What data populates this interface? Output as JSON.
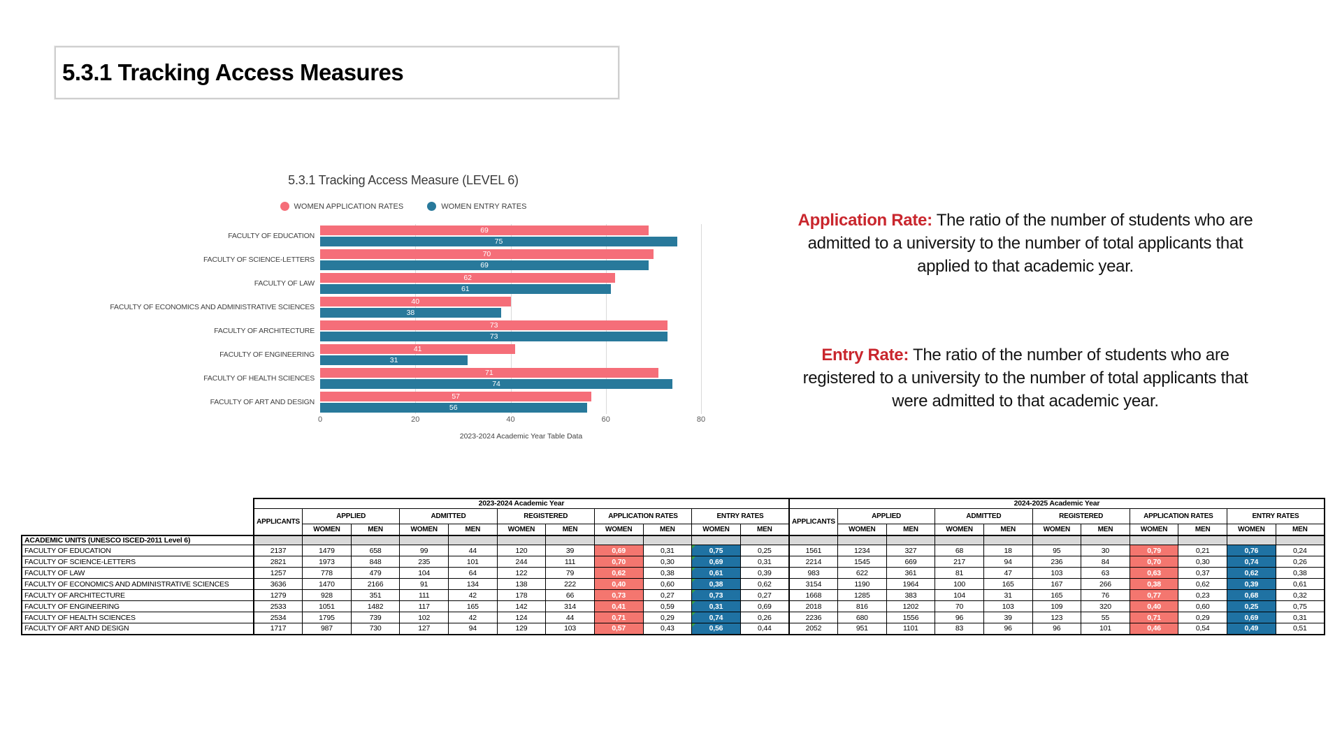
{
  "page": {
    "title": "5.3.1 Tracking Access Measures"
  },
  "colors": {
    "application_bar": "#F56E79",
    "entry_bar": "#28799B",
    "application_cell": "#F4766F",
    "entry_cell": "#1F72A3",
    "accent_red": "#C9262D",
    "grid": "#D9D9D9"
  },
  "chart_data": {
    "type": "bar",
    "orientation": "horizontal",
    "title": "5.3.1 Tracking Access Measure (LEVEL 6)",
    "xlabel": "2023-2024 Academic Year Table Data",
    "xlim": [
      0,
      80
    ],
    "xticks": [
      0,
      20,
      40,
      60,
      80
    ],
    "grid": "vertical",
    "legend_position": "top",
    "categories": [
      "FACULTY OF EDUCATION",
      "FACULTY OF SCIENCE-LETTERS",
      "FACULTY OF LAW",
      "FACULTY OF ECONOMICS AND ADMINISTRATIVE SCIENCES",
      "FACULTY OF ARCHITECTURE",
      "FACULTY OF ENGINEERING",
      "FACULTY OF HEALTH SCIENCES",
      "FACULTY OF ART AND DESIGN"
    ],
    "series": [
      {
        "name": "WOMEN APPLICATION RATES",
        "color": "#F56E79",
        "values": [
          69,
          70,
          62,
          40,
          73,
          41,
          71,
          57
        ]
      },
      {
        "name": "WOMEN ENTRY RATES",
        "color": "#28799B",
        "values": [
          75,
          69,
          61,
          38,
          73,
          31,
          74,
          56
        ]
      }
    ]
  },
  "definitions": [
    {
      "term": "Application Rate:",
      "text": " The ratio of the number of students who are admitted to a university to the number of total applicants that applied to that academic year."
    },
    {
      "term": "Entry Rate:",
      "text": " The ratio of the number of students who are registered to a university to the number of total applicants that were admitted to that academic year."
    }
  ],
  "table": {
    "year_sections": [
      "2023-2024 Academic Year",
      "2024-2025 Academic Year"
    ],
    "applicants_header": "APPLICANTS",
    "col_groups": [
      "APPLIED",
      "ADMITTED",
      "REGISTERED",
      "APPLICATION RATES",
      "ENTRY RATES"
    ],
    "sub_headers": [
      "WOMEN",
      "MEN"
    ],
    "units_header": "ACADEMIC UNITS (UNESCO ISCED-2011 Level 6)",
    "rows": [
      {
        "unit": "FACULTY OF EDUCATION",
        "y2023": [
          "2137",
          "1479",
          "658",
          "99",
          "44",
          "120",
          "39",
          "0,69",
          "0,31",
          "0,75",
          "0,25"
        ],
        "y2024": [
          "1561",
          "1234",
          "327",
          "68",
          "18",
          "95",
          "30",
          "0,79",
          "0,21",
          "0,76",
          "0,24"
        ]
      },
      {
        "unit": "FACULTY OF SCIENCE-LETTERS",
        "y2023": [
          "2821",
          "1973",
          "848",
          "235",
          "101",
          "244",
          "111",
          "0,70",
          "0,30",
          "0,69",
          "0,31"
        ],
        "y2024": [
          "2214",
          "1545",
          "669",
          "217",
          "94",
          "236",
          "84",
          "0,70",
          "0,30",
          "0,74",
          "0,26"
        ]
      },
      {
        "unit": "FACULTY OF LAW",
        "y2023": [
          "1257",
          "778",
          "479",
          "104",
          "64",
          "122",
          "79",
          "0,62",
          "0,38",
          "0,61",
          "0,39"
        ],
        "y2024": [
          "983",
          "622",
          "361",
          "81",
          "47",
          "103",
          "63",
          "0,63",
          "0,37",
          "0,62",
          "0,38"
        ]
      },
      {
        "unit": "FACULTY OF ECONOMICS AND ADMINISTRATIVE SCIENCES",
        "y2023": [
          "3636",
          "1470",
          "2166",
          "91",
          "134",
          "138",
          "222",
          "0,40",
          "0,60",
          "0,38",
          "0,62"
        ],
        "y2024": [
          "3154",
          "1190",
          "1964",
          "100",
          "165",
          "167",
          "266",
          "0,38",
          "0,62",
          "0,39",
          "0,61"
        ]
      },
      {
        "unit": "FACULTY OF ARCHITECTURE",
        "y2023": [
          "1279",
          "928",
          "351",
          "111",
          "42",
          "178",
          "66",
          "0,73",
          "0,27",
          "0,73",
          "0,27"
        ],
        "y2024": [
          "1668",
          "1285",
          "383",
          "104",
          "31",
          "165",
          "76",
          "0,77",
          "0,23",
          "0,68",
          "0,32"
        ]
      },
      {
        "unit": "FACULTY OF ENGINEERING",
        "y2023": [
          "2533",
          "1051",
          "1482",
          "117",
          "165",
          "142",
          "314",
          "0,41",
          "0,59",
          "0,31",
          "0,69"
        ],
        "y2024": [
          "2018",
          "816",
          "1202",
          "70",
          "103",
          "109",
          "320",
          "0,40",
          "0,60",
          "0,25",
          "0,75"
        ]
      },
      {
        "unit": "FACULTY OF HEALTH SCIENCES",
        "y2023": [
          "2534",
          "1795",
          "739",
          "102",
          "42",
          "124",
          "44",
          "0,71",
          "0,29",
          "0,74",
          "0,26"
        ],
        "y2024": [
          "2236",
          "680",
          "1556",
          "96",
          "39",
          "123",
          "55",
          "0,71",
          "0,29",
          "0,69",
          "0,31"
        ]
      },
      {
        "unit": "FACULTY OF ART AND DESIGN",
        "y2023": [
          "1717",
          "987",
          "730",
          "127",
          "94",
          "129",
          "103",
          "0,57",
          "0,43",
          "0,56",
          "0,44"
        ],
        "y2024": [
          "2052",
          "951",
          "1101",
          "83",
          "96",
          "96",
          "101",
          "0,46",
          "0,54",
          "0,49",
          "0,51"
        ]
      }
    ]
  }
}
